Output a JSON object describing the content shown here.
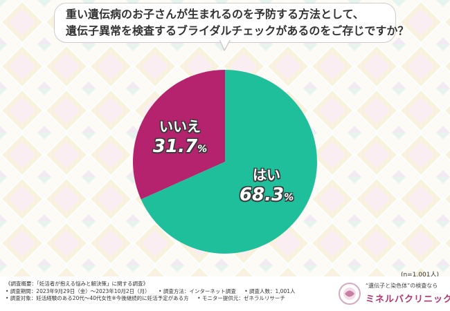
{
  "question": {
    "line1": "重い遺伝病のお子さんが生まれるのを予防する方法として、",
    "line2": "遺伝子異常を検査するブライダルチェックがあるのをご存じですか？"
  },
  "chart_data": {
    "type": "pie",
    "slices": [
      {
        "label": "はい",
        "value": 68.3,
        "color": "#1fbf9c"
      },
      {
        "label": "いいえ",
        "value": 31.7,
        "color": "#b5226e"
      }
    ],
    "start_angle_deg": 0,
    "direction": "clockwise",
    "unit": "%"
  },
  "sample_size": "(n=1,001人)",
  "notes": {
    "summary": "《調査概要：「妊活者が抱える悩みと解決策」に関する調査》",
    "period": "• 調査期間：2023年9月29日（金）〜2023年10月2日（月）",
    "method": "• 調査方法：インターネット調査",
    "count": "• 調査人数：1,001人",
    "target": "• 調査対象：妊活経験のある20代〜40代女性※今後継続的に妊活予定がある方",
    "provider": "• モニター提供元：ゼネラルリサーチ"
  },
  "logo": {
    "tagline": "“遺伝子と染色体”の検査なら",
    "name": "ミネルバクリニック"
  },
  "colors": {
    "yes": "#1fbf9c",
    "no": "#b5226e",
    "brand": "#b0336f"
  }
}
